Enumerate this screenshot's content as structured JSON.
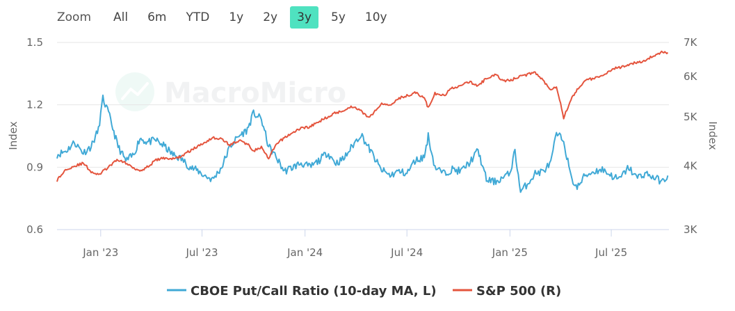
{
  "zoom": {
    "label": "Zoom",
    "buttons": [
      "All",
      "6m",
      "YTD",
      "1y",
      "2y",
      "3y",
      "5y",
      "10y"
    ],
    "active": "3y"
  },
  "watermark": {
    "text": "MacroMicro"
  },
  "chart_data": {
    "type": "line",
    "x_ticks": [
      "Jan '23",
      "Jul '23",
      "Jan '24",
      "Jul '24",
      "Jan '25",
      "Jul '25"
    ],
    "y_left": {
      "label": "Index",
      "ticks": [
        "0.6",
        "0.9",
        "1.2",
        "1.5"
      ],
      "range": [
        0.6,
        1.5
      ]
    },
    "y_right": {
      "label": "Index",
      "ticks": [
        "3K",
        "4K",
        "5K",
        "6K",
        "7K"
      ],
      "scale": "log",
      "range": [
        3000,
        7000
      ]
    },
    "grid": "horizontal",
    "legend_position": "bottom",
    "colors": {
      "pcr": "#40a9d6",
      "spx": "#e4543d"
    },
    "series": [
      {
        "name": "CBOE Put/Call Ratio (10-day MA, L)",
        "axis": "left",
        "x": [
          "2022-10-15",
          "2022-11-01",
          "2022-11-15",
          "2022-12-01",
          "2022-12-15",
          "2022-12-28",
          "2023-01-05",
          "2023-01-15",
          "2023-02-01",
          "2023-02-15",
          "2023-03-01",
          "2023-03-12",
          "2023-03-25",
          "2023-04-10",
          "2023-04-25",
          "2023-05-10",
          "2023-05-25",
          "2023-06-10",
          "2023-06-25",
          "2023-07-05",
          "2023-07-20",
          "2023-08-05",
          "2023-08-20",
          "2023-09-05",
          "2023-09-20",
          "2023-10-01",
          "2023-10-15",
          "2023-10-28",
          "2023-11-10",
          "2023-11-25",
          "2023-12-10",
          "2023-12-25",
          "2024-01-10",
          "2024-01-25",
          "2024-02-10",
          "2024-02-25",
          "2024-03-10",
          "2024-03-25",
          "2024-04-10",
          "2024-04-20",
          "2024-05-01",
          "2024-05-15",
          "2024-06-01",
          "2024-06-15",
          "2024-07-01",
          "2024-07-15",
          "2024-08-01",
          "2024-08-08",
          "2024-08-20",
          "2024-09-05",
          "2024-09-20",
          "2024-10-05",
          "2024-10-20",
          "2024-11-05",
          "2024-11-20",
          "2024-12-05",
          "2024-12-20",
          "2025-01-01",
          "2025-01-10",
          "2025-01-20",
          "2025-02-01",
          "2025-02-15",
          "2025-03-01",
          "2025-03-15",
          "2025-03-25",
          "2025-04-07",
          "2025-04-20",
          "2025-05-01",
          "2025-05-15",
          "2025-06-01",
          "2025-06-15",
          "2025-07-01",
          "2025-07-15",
          "2025-08-01",
          "2025-08-15",
          "2025-09-01",
          "2025-09-15",
          "2025-10-01",
          "2025-10-10"
        ],
        "values": [
          0.96,
          0.98,
          1.02,
          0.97,
          1.0,
          1.08,
          1.23,
          1.16,
          1.0,
          0.93,
          0.96,
          1.04,
          1.02,
          1.03,
          1.0,
          0.96,
          0.94,
          0.9,
          0.88,
          0.86,
          0.84,
          0.9,
          1.0,
          1.05,
          1.08,
          1.16,
          1.13,
          1.0,
          0.95,
          0.88,
          0.9,
          0.92,
          0.9,
          0.93,
          0.97,
          0.92,
          0.94,
          1.0,
          1.06,
          1.01,
          0.96,
          0.89,
          0.86,
          0.88,
          0.87,
          0.93,
          0.95,
          1.05,
          0.9,
          0.87,
          0.89,
          0.88,
          0.92,
          0.98,
          0.84,
          0.83,
          0.85,
          0.87,
          0.98,
          0.78,
          0.82,
          0.87,
          0.88,
          0.92,
          1.06,
          1.03,
          0.85,
          0.8,
          0.86,
          0.88,
          0.89,
          0.86,
          0.84,
          0.9,
          0.85,
          0.87,
          0.85,
          0.83,
          0.86
        ]
      },
      {
        "name": "S&P 500 (R)",
        "axis": "right",
        "x": [
          "2022-10-15",
          "2022-11-01",
          "2022-11-15",
          "2022-12-01",
          "2022-12-15",
          "2022-12-28",
          "2023-01-15",
          "2023-02-01",
          "2023-02-15",
          "2023-03-01",
          "2023-03-12",
          "2023-03-25",
          "2023-04-10",
          "2023-04-25",
          "2023-05-10",
          "2023-05-25",
          "2023-06-10",
          "2023-06-25",
          "2023-07-05",
          "2023-07-20",
          "2023-08-05",
          "2023-08-20",
          "2023-09-05",
          "2023-09-20",
          "2023-10-01",
          "2023-10-15",
          "2023-10-28",
          "2023-11-10",
          "2023-11-25",
          "2023-12-10",
          "2023-12-25",
          "2024-01-10",
          "2024-01-25",
          "2024-02-10",
          "2024-02-25",
          "2024-03-10",
          "2024-03-25",
          "2024-04-10",
          "2024-04-20",
          "2024-05-01",
          "2024-05-15",
          "2024-06-01",
          "2024-06-15",
          "2024-07-01",
          "2024-07-15",
          "2024-08-01",
          "2024-08-08",
          "2024-08-20",
          "2024-09-05",
          "2024-09-20",
          "2024-10-05",
          "2024-10-20",
          "2024-11-05",
          "2024-11-20",
          "2024-12-05",
          "2024-12-20",
          "2025-01-01",
          "2025-01-10",
          "2025-01-20",
          "2025-02-01",
          "2025-02-15",
          "2025-03-01",
          "2025-03-15",
          "2025-03-25",
          "2025-04-07",
          "2025-04-20",
          "2025-05-01",
          "2025-05-15",
          "2025-06-01",
          "2025-06-15",
          "2025-07-01",
          "2025-07-15",
          "2025-08-01",
          "2025-08-15",
          "2025-09-01",
          "2025-09-15",
          "2025-10-01",
          "2025-10-10"
        ],
        "values": [
          3750,
          3950,
          4000,
          4050,
          3900,
          3840,
          3980,
          4120,
          4050,
          3970,
          3920,
          3980,
          4110,
          4150,
          4130,
          4180,
          4290,
          4380,
          4450,
          4550,
          4520,
          4400,
          4490,
          4420,
          4290,
          4350,
          4130,
          4400,
          4550,
          4650,
          4750,
          4780,
          4880,
          5000,
          5090,
          5150,
          5240,
          5150,
          5000,
          5050,
          5300,
          5280,
          5430,
          5500,
          5580,
          5450,
          5200,
          5550,
          5500,
          5700,
          5750,
          5860,
          5750,
          5950,
          6050,
          5900,
          5880,
          5950,
          6010,
          6050,
          6120,
          5900,
          5650,
          5750,
          4980,
          5400,
          5650,
          5900,
          5950,
          6000,
          6200,
          6250,
          6300,
          6400,
          6450,
          6600,
          6700,
          6690
        ]
      }
    ]
  }
}
